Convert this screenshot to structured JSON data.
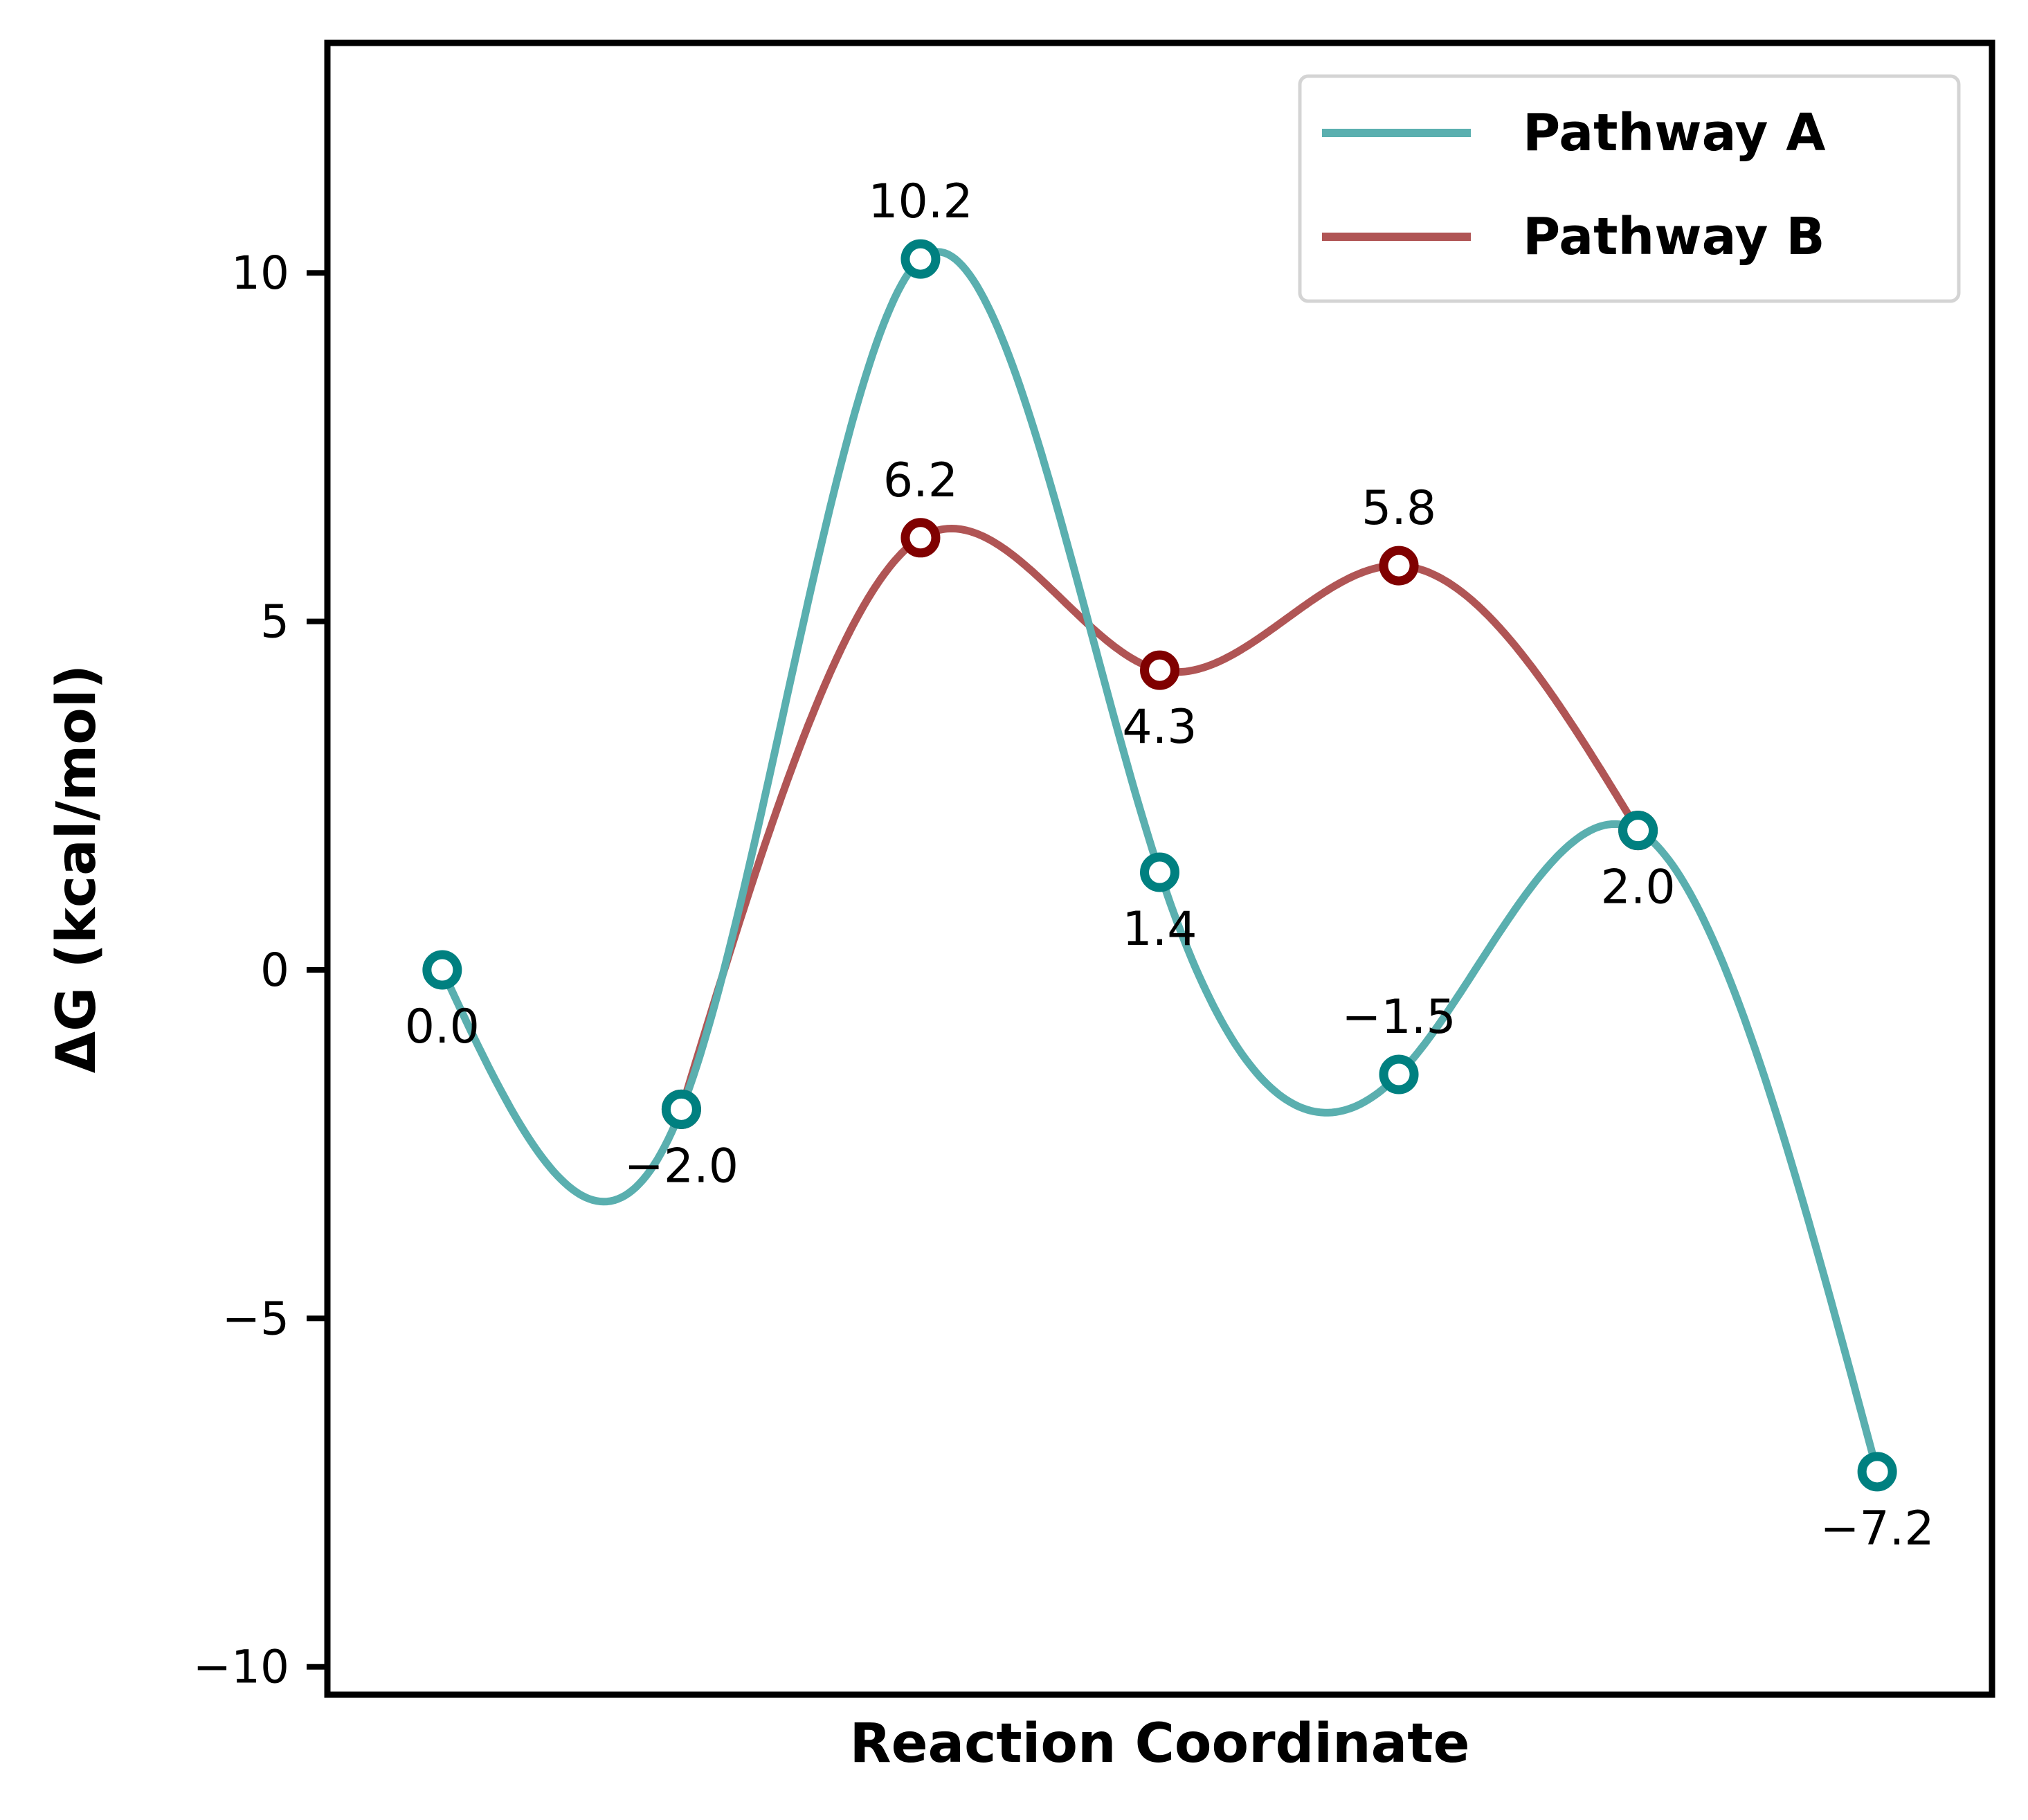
{
  "chart_data": {
    "type": "line",
    "xlabel": "Reaction Coordinate",
    "ylabel": "ΔG (kcal/mol)",
    "ylim": [
      -10.4,
      13.3
    ],
    "yticks": [
      10,
      5,
      0,
      -5,
      -10
    ],
    "ytick_labels": [
      "10",
      "5",
      "0",
      "−5",
      "−10"
    ],
    "x": [
      0,
      1,
      2,
      3,
      4,
      5,
      6
    ],
    "grid": false,
    "legend_position": "top-right",
    "series": [
      {
        "name": "Pathway A",
        "color": "#5aafaf",
        "marker_color": "#008080",
        "x": [
          0,
          1,
          2,
          3,
          4,
          5,
          6
        ],
        "values": [
          0.0,
          -2.0,
          10.2,
          1.4,
          -1.5,
          2.0,
          -7.2
        ],
        "labels": [
          "0.0",
          "−2.0",
          "10.2",
          "1.4",
          "−1.5",
          "2.0",
          "−7.2"
        ],
        "label_pos": [
          "below",
          "below",
          "above",
          "below",
          "above",
          "below",
          "below"
        ],
        "label_show": [
          true,
          true,
          true,
          true,
          true,
          true,
          true
        ]
      },
      {
        "name": "Pathway B",
        "color": "#b05555",
        "marker_color": "#800000",
        "x": [
          1,
          2,
          3,
          4,
          5
        ],
        "values": [
          -2.0,
          6.2,
          4.3,
          5.8,
          2.0
        ],
        "labels": [
          "−2.0",
          "6.2",
          "4.3",
          "5.8",
          "2.0"
        ],
        "label_pos": [
          "below",
          "above",
          "below",
          "above",
          "below"
        ],
        "label_show": [
          false,
          true,
          true,
          true,
          false
        ]
      }
    ]
  }
}
